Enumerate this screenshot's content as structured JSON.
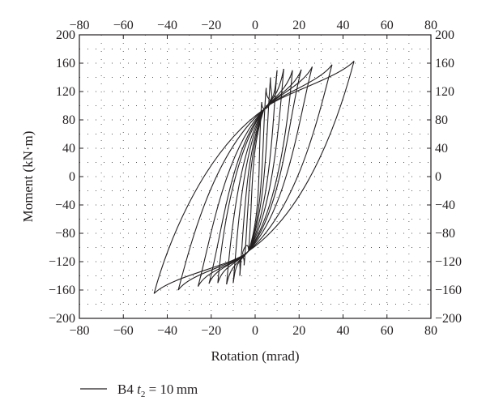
{
  "chart_data": {
    "type": "line",
    "title": "",
    "xlabel": "Rotation (mrad)",
    "ylabel": "Moment (kN·m)",
    "xlim": [
      -80,
      80
    ],
    "ylim": [
      -200,
      200
    ],
    "xticks": [
      -80,
      -60,
      -40,
      -20,
      0,
      20,
      40,
      60,
      80
    ],
    "yticks": [
      -200,
      -160,
      -120,
      -80,
      -40,
      0,
      40,
      80,
      120,
      160,
      200
    ],
    "x_tick_labels": [
      "−80",
      "−60",
      "−40",
      "−20",
      "0",
      "20",
      "40",
      "60",
      "80"
    ],
    "y_tick_labels": [
      "−200",
      "−160",
      "−120",
      "−80",
      "−40",
      "0",
      "40",
      "80",
      "120",
      "160",
      "200"
    ],
    "mirrored_axes": "top and right axes repeat the tick labels",
    "grid": "dotted",
    "legend": {
      "placement": "below plot, left",
      "prefix": "B4 ",
      "symbol": "t",
      "subscript": "2",
      "suffix": " = 10 mm"
    },
    "series": [
      {
        "name": "B4 t2 = 10 mm",
        "color": "#231f20",
        "cycles_peak_rotation_mrad": [
          3,
          5,
          7,
          10,
          13,
          17,
          21,
          26,
          35,
          45
        ],
        "cycles_peak_moment_kNm": [
          105,
          125,
          140,
          150,
          152,
          150,
          151,
          155,
          158,
          163
        ],
        "cycles_min_rotation_mrad": [
          -3,
          -5,
          -7,
          -10,
          -13,
          -17,
          -21,
          -26,
          -35,
          -46
        ],
        "cycles_min_moment_kNm": [
          -105,
          -125,
          -140,
          -150,
          -152,
          -150,
          -151,
          -155,
          -160,
          -165
        ],
        "pinch_points": [
          [
            4,
            95
          ],
          [
            -3,
            -105
          ]
        ]
      }
    ]
  }
}
